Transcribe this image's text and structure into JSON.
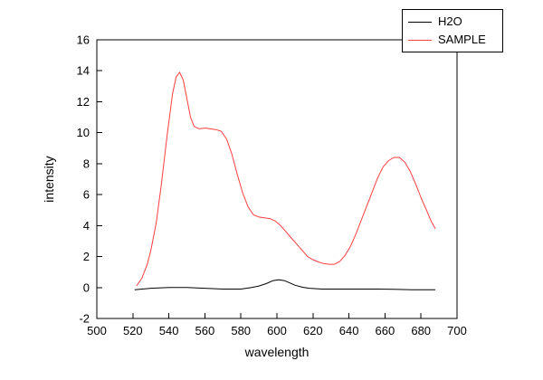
{
  "figure": {
    "background": "#ffffff"
  },
  "colors": {
    "axis": "#000000",
    "h2o_line": "#000000",
    "sample_line": "#fb3e3e"
  },
  "chart_data": {
    "type": "line",
    "title": "",
    "xlabel": "wavelength",
    "ylabel": "intensity",
    "xlim": [
      500,
      700
    ],
    "ylim": [
      -2,
      16
    ],
    "xticks": [
      500,
      520,
      540,
      560,
      580,
      600,
      620,
      640,
      660,
      680,
      700
    ],
    "yticks": [
      -2,
      0,
      2,
      4,
      6,
      8,
      10,
      12,
      14,
      16
    ],
    "grid": false,
    "legend_position": "top-right",
    "series": [
      {
        "name": "H2O",
        "color": "#000000",
        "x": [
          521,
          530,
          540,
          550,
          560,
          570,
          580,
          586,
          590,
          594,
          598,
          601,
          604,
          607,
          610,
          614,
          618,
          625,
          635,
          645,
          655,
          665,
          675,
          685,
          688
        ],
        "y": [
          -0.15,
          -0.05,
          0.0,
          0.0,
          -0.05,
          -0.1,
          -0.1,
          0.0,
          0.1,
          0.25,
          0.45,
          0.5,
          0.45,
          0.3,
          0.15,
          0.02,
          -0.05,
          -0.1,
          -0.1,
          -0.1,
          -0.1,
          -0.12,
          -0.15,
          -0.15,
          -0.15
        ]
      },
      {
        "name": "SAMPLE",
        "color": "#fb3e3e",
        "x": [
          522,
          525,
          528,
          530,
          533,
          536,
          539,
          542,
          544,
          546,
          548,
          550,
          552,
          554,
          557,
          560,
          563,
          566,
          569,
          572,
          575,
          578,
          581,
          584,
          587,
          590,
          593,
          596,
          599,
          602,
          605,
          608,
          611,
          614,
          617,
          620,
          623,
          626,
          629,
          632,
          635,
          638,
          641,
          644,
          647,
          650,
          653,
          656,
          659,
          662,
          665,
          668,
          671,
          674,
          677,
          680,
          683,
          686,
          688
        ],
        "y": [
          0.1,
          0.6,
          1.5,
          2.4,
          4.2,
          6.8,
          9.8,
          12.5,
          13.6,
          13.9,
          13.4,
          12.2,
          11.0,
          10.4,
          10.25,
          10.3,
          10.25,
          10.2,
          10.1,
          9.6,
          8.6,
          7.3,
          6.1,
          5.2,
          4.7,
          4.55,
          4.5,
          4.45,
          4.3,
          4.0,
          3.6,
          3.2,
          2.8,
          2.4,
          2.0,
          1.8,
          1.65,
          1.55,
          1.5,
          1.5,
          1.7,
          2.1,
          2.7,
          3.5,
          4.4,
          5.3,
          6.2,
          7.1,
          7.8,
          8.2,
          8.4,
          8.4,
          8.1,
          7.5,
          6.7,
          5.8,
          5.0,
          4.2,
          3.8
        ]
      }
    ]
  }
}
